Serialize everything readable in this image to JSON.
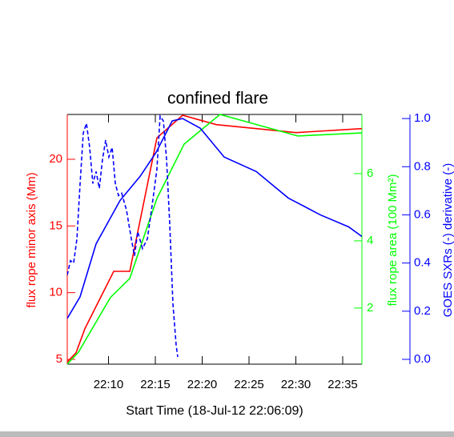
{
  "chart_data": {
    "type": "line",
    "title": "confined flare",
    "xlabel": "Start Time (18-Jul-12 22:06:09)",
    "ylabel": "flux rope minor axis (Mm)",
    "y2label": "flux rope area (100 Mm²)",
    "y3label": "GOES SXRs (-) derivative (-)",
    "xlim": [
      5.6,
      37.05
    ],
    "xticks": [
      {
        "value": 10,
        "label": "22:10"
      },
      {
        "value": 15,
        "label": "22:15"
      },
      {
        "value": 20,
        "label": "22:20"
      },
      {
        "value": 25,
        "label": "22:25"
      },
      {
        "value": 30,
        "label": "22:30"
      },
      {
        "value": 35,
        "label": "22:35"
      }
    ],
    "ylim": [
      4.64,
      23.36
    ],
    "yticks": [
      5,
      10,
      15,
      20
    ],
    "ycolor": "#ff0000",
    "y2lim": [
      0.33,
      7.76
    ],
    "y2ticks": [
      2,
      4,
      6
    ],
    "y2color": "#00ff00",
    "y3lim": [
      -0.02,
      1.017
    ],
    "y3ticks": [
      {
        "value": 0,
        "label": "0.0"
      },
      {
        "value": 0.2,
        "label": "0.2"
      },
      {
        "value": 0.4,
        "label": "0.4"
      },
      {
        "value": 0.6,
        "label": "0.6"
      },
      {
        "value": 0.8,
        "label": "0.8"
      },
      {
        "value": 1,
        "label": "1.0"
      }
    ],
    "y3color": "#0000ff",
    "series": [
      {
        "name": "flux rope minor axis",
        "color": "#ff0000",
        "axis": "y",
        "dashed": false,
        "x": [
          5.6,
          6.54,
          7.48,
          10.56,
          12.27,
          15.17,
          17.91,
          21.5,
          30.04,
          37.05
        ],
        "values": [
          4.8,
          5.5,
          7.3,
          11.6,
          11.6,
          21.6,
          23.3,
          22.6,
          22.0,
          22.3
        ]
      },
      {
        "name": "flux rope area",
        "color": "#00ff00",
        "axis": "y2",
        "dashed": false,
        "x": [
          5.6,
          6.8,
          10.2,
          12.27,
          15.17,
          18.08,
          21.9,
          30.2,
          37.05
        ],
        "values": [
          0.33,
          0.69,
          2.31,
          2.88,
          5.26,
          6.88,
          7.76,
          7.12,
          7.21
        ]
      },
      {
        "name": "GOES SXRs",
        "color": "#0000ff",
        "axis": "y3",
        "dashed": false,
        "x": [
          5.6,
          6.97,
          8.68,
          11.24,
          13.38,
          15.09,
          16.8,
          17.91,
          19.79,
          22.35,
          25.77,
          29.19,
          32.61,
          35.64,
          37.05
        ],
        "values": [
          0.17,
          0.26,
          0.48,
          0.66,
          0.76,
          0.86,
          0.99,
          1.0,
          0.96,
          0.84,
          0.78,
          0.67,
          0.6,
          0.55,
          0.51
        ]
      },
      {
        "name": "GOES SXRs derivative",
        "color": "#0000ff",
        "axis": "y3",
        "dashed": true,
        "x": [
          5.6,
          5.94,
          6.28,
          6.63,
          6.97,
          7.31,
          7.65,
          7.99,
          8.33,
          8.68,
          9.02,
          9.36,
          9.7,
          10.04,
          10.39,
          10.73,
          11.07,
          11.41,
          11.92,
          12.44,
          12.78,
          13.12,
          13.63,
          14.15,
          14.66,
          15.17,
          15.51,
          15.86,
          16.2,
          16.54,
          16.88,
          17.22,
          17.39
        ],
        "values": [
          0.35,
          0.41,
          0.4,
          0.5,
          0.73,
          0.94,
          0.98,
          0.88,
          0.73,
          0.78,
          0.71,
          0.83,
          0.91,
          0.84,
          0.88,
          0.73,
          0.68,
          0.69,
          0.62,
          0.5,
          0.43,
          0.53,
          0.46,
          0.5,
          0.64,
          0.79,
          1.01,
          0.99,
          0.83,
          0.56,
          0.23,
          0.06,
          0.01
        ]
      }
    ]
  }
}
